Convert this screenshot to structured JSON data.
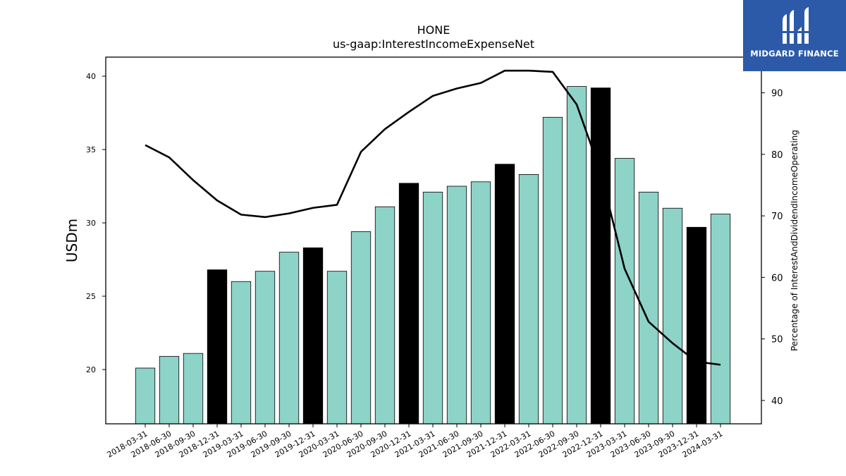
{
  "chart_data": {
    "type": "bar",
    "title": "HONE",
    "subtitle": "us-gaap:InterestIncomeExpenseNet",
    "ylabel": "USDm",
    "ylabel_right": "Percentage of InterestAndDividendIncomeOperating",
    "ylim": [
      16.3,
      41.3
    ],
    "ylim_right": [
      36.2,
      95.8
    ],
    "yticks": [
      20,
      25,
      30,
      35,
      40
    ],
    "yticks_right": [
      40,
      50,
      60,
      70,
      80,
      90
    ],
    "categories": [
      "2018-03-31",
      "2018-06-30",
      "2018-09-30",
      "2018-12-31",
      "2019-03-31",
      "2019-06-30",
      "2019-09-30",
      "2019-12-31",
      "2020-03-31",
      "2020-06-30",
      "2020-09-30",
      "2020-12-31",
      "2021-03-31",
      "2021-06-30",
      "2021-09-30",
      "2021-12-31",
      "2022-03-31",
      "2022-06-30",
      "2022-09-30",
      "2022-12-31",
      "2023-03-31",
      "2023-06-30",
      "2023-09-30",
      "2023-12-31",
      "2024-03-31"
    ],
    "series": [
      {
        "kind": "bar",
        "values": [
          20.1,
          20.9,
          21.1,
          26.8,
          26.0,
          26.7,
          28.0,
          28.3,
          26.7,
          29.4,
          31.1,
          32.7,
          32.1,
          32.5,
          32.8,
          34.0,
          33.3,
          37.2,
          39.3,
          39.2,
          34.4,
          32.1,
          31.0,
          29.7,
          30.6
        ],
        "highlight": [
          false,
          false,
          false,
          true,
          false,
          false,
          false,
          true,
          false,
          false,
          false,
          true,
          false,
          false,
          false,
          true,
          false,
          false,
          false,
          true,
          false,
          false,
          false,
          true,
          false
        ]
      },
      {
        "kind": "line",
        "axis": "right",
        "values": [
          81.5,
          79.5,
          75.8,
          72.5,
          70.2,
          69.8,
          70.4,
          71.3,
          71.8,
          80.4,
          84.1,
          86.9,
          89.5,
          90.7,
          91.6,
          93.6,
          93.6,
          93.4,
          88.1,
          77.1,
          61.4,
          52.8,
          49.3,
          46.3,
          45.8
        ]
      }
    ],
    "colors": {
      "bar": "#8dd3c7",
      "bar_highlight": "#000000",
      "line": "#000000"
    },
    "grid": false,
    "legend": "none"
  },
  "logo": {
    "text": "MIDGARD FINANCE",
    "background": "#2d5aa8"
  }
}
